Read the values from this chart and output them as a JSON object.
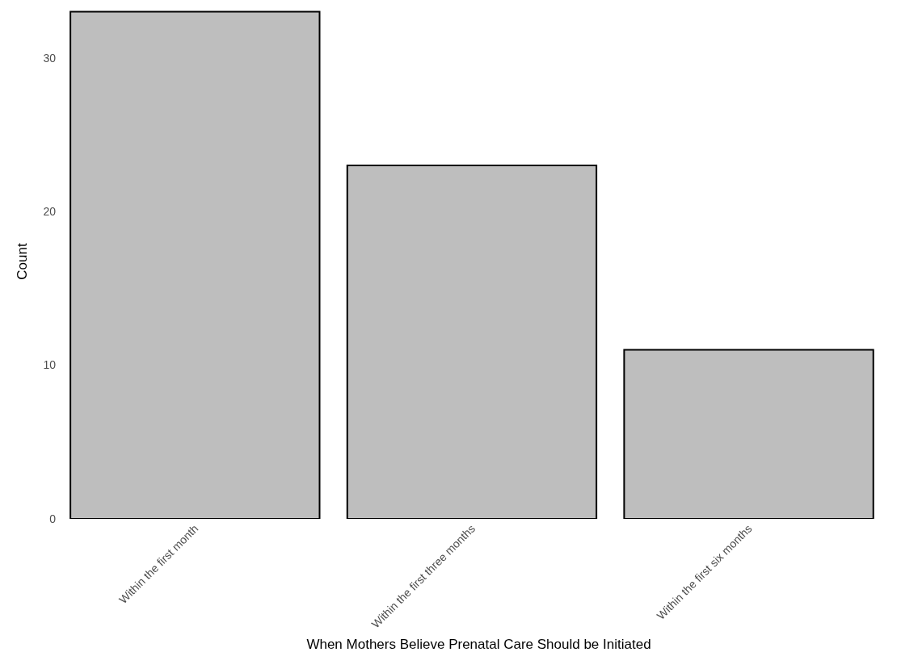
{
  "chart_data": {
    "type": "bar",
    "xlabel": "When Mothers Believe Prenatal Care Should be Initiated",
    "ylabel": "Count",
    "categories": [
      "Within the first month",
      "Within the first three months",
      "Within the first six months"
    ],
    "values": [
      33,
      23,
      11
    ],
    "color": "#bebebe",
    "ylim": [
      0,
      33.5
    ],
    "yticks": [
      0,
      10,
      20,
      30
    ]
  }
}
